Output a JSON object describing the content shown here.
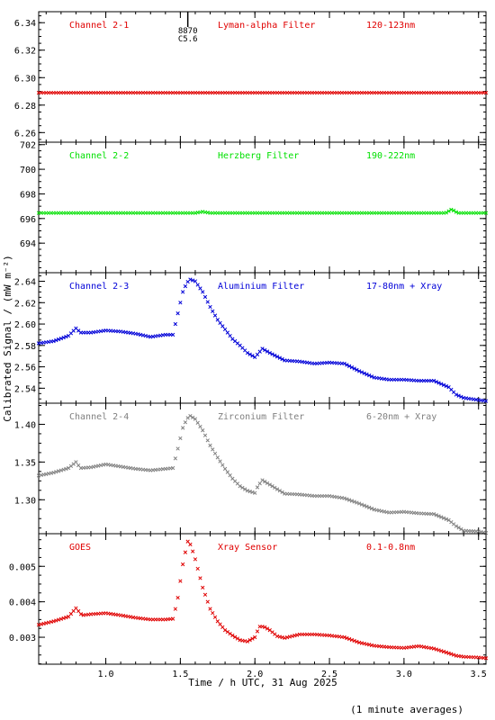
{
  "figure": {
    "xlabel": "Time / h UTC, 31 Aug 2025",
    "ylabel": "Calibrated Signal / (mW m⁻²)",
    "footnote": "(1 minute averages)",
    "colors": {
      "red": "#e00000",
      "green": "#00e000",
      "blue": "#0000d8",
      "gray": "#808080",
      "axis": "#000000"
    }
  },
  "chart_data": [
    {
      "type": "scatter",
      "panel": 1,
      "labels": [
        "Channel 2-1",
        "Lyman-alpha Filter",
        "120-123nm"
      ],
      "color": "#e00000",
      "xlim": [
        0.55,
        3.55
      ],
      "ylim": [
        6.253,
        6.348
      ],
      "yticks": [
        6.26,
        6.28,
        6.3,
        6.32,
        6.34
      ],
      "ytick_labels": [
        "6.26",
        "6.28",
        "6.30",
        "6.32",
        "6.34"
      ],
      "annotation": {
        "x": 1.55,
        "lines": [
          "8870",
          "C5.6"
        ]
      },
      "series": [
        {
          "x": [
            0.55,
            3.55
          ],
          "y": [
            6.289,
            6.289
          ]
        }
      ]
    },
    {
      "type": "scatter",
      "panel": 2,
      "labels": [
        "Channel 2-2",
        "Herzberg Filter",
        "190-222nm"
      ],
      "color": "#00e000",
      "xlim": [
        0.55,
        3.55
      ],
      "ylim": [
        691.6,
        702.2
      ],
      "yticks": [
        694,
        696,
        698,
        700,
        702
      ],
      "ytick_labels": [
        "694",
        "696",
        "698",
        "700",
        "702"
      ],
      "series": [
        {
          "x": [
            0.55,
            1.6,
            1.65,
            1.7,
            3.28,
            3.32,
            3.36,
            3.55
          ],
          "y": [
            696.45,
            696.45,
            696.55,
            696.45,
            696.45,
            696.75,
            696.45,
            696.45
          ]
        }
      ]
    },
    {
      "type": "scatter",
      "panel": 3,
      "labels": [
        "Channel 2-3",
        "Aluminium Filter",
        "17-80nm + Xray"
      ],
      "color": "#0000d8",
      "xlim": [
        0.55,
        3.55
      ],
      "ylim": [
        2.526,
        2.648
      ],
      "yticks": [
        2.54,
        2.56,
        2.58,
        2.6,
        2.62,
        2.64
      ],
      "ytick_labels": [
        "2.54",
        "2.56",
        "2.58",
        "2.60",
        "2.62",
        "2.64"
      ],
      "series": [
        {
          "x": [
            0.55,
            0.65,
            0.75,
            0.8,
            0.83,
            0.9,
            1.0,
            1.1,
            1.2,
            1.3,
            1.4,
            1.45,
            1.48,
            1.52,
            1.56,
            1.6,
            1.65,
            1.7,
            1.75,
            1.8,
            1.85,
            1.9,
            1.95,
            2.0,
            2.02,
            2.05,
            2.1,
            2.2,
            2.3,
            2.4,
            2.5,
            2.6,
            2.7,
            2.8,
            2.9,
            3.0,
            3.1,
            3.2,
            3.3,
            3.35,
            3.4,
            3.5,
            3.55
          ],
          "y": [
            2.582,
            2.584,
            2.589,
            2.596,
            2.592,
            2.592,
            2.594,
            2.593,
            2.591,
            2.588,
            2.59,
            2.59,
            2.608,
            2.632,
            2.642,
            2.64,
            2.63,
            2.616,
            2.604,
            2.595,
            2.586,
            2.58,
            2.573,
            2.569,
            2.572,
            2.577,
            2.573,
            2.566,
            2.565,
            2.563,
            2.564,
            2.563,
            2.556,
            2.55,
            2.548,
            2.548,
            2.547,
            2.547,
            2.541,
            2.534,
            2.531,
            2.529,
            2.528
          ]
        }
      ]
    },
    {
      "type": "scatter",
      "panel": 4,
      "labels": [
        "Channel 2-4",
        "Zirconium Filter",
        "6-20nm + Xray"
      ],
      "color": "#808080",
      "xlim": [
        0.55,
        3.55
      ],
      "ylim": [
        1.255,
        1.428
      ],
      "yticks": [
        1.3,
        1.35,
        1.4
      ],
      "ytick_labels": [
        "1.30",
        "1.35",
        "1.40"
      ],
      "series": [
        {
          "x": [
            0.55,
            0.65,
            0.75,
            0.8,
            0.83,
            0.9,
            1.0,
            1.1,
            1.2,
            1.3,
            1.4,
            1.45,
            1.48,
            1.52,
            1.56,
            1.6,
            1.65,
            1.7,
            1.75,
            1.8,
            1.85,
            1.9,
            1.95,
            2.0,
            2.02,
            2.05,
            2.1,
            2.2,
            2.3,
            2.4,
            2.5,
            2.6,
            2.7,
            2.8,
            2.9,
            3.0,
            3.1,
            3.2,
            3.3,
            3.35,
            3.4,
            3.5,
            3.55
          ],
          "y": [
            1.332,
            1.336,
            1.342,
            1.35,
            1.342,
            1.343,
            1.347,
            1.344,
            1.341,
            1.339,
            1.341,
            1.342,
            1.365,
            1.398,
            1.412,
            1.407,
            1.392,
            1.372,
            1.356,
            1.341,
            1.328,
            1.318,
            1.312,
            1.309,
            1.318,
            1.326,
            1.32,
            1.308,
            1.307,
            1.305,
            1.305,
            1.302,
            1.295,
            1.287,
            1.283,
            1.284,
            1.282,
            1.281,
            1.273,
            1.265,
            1.259,
            1.258,
            1.256
          ]
        }
      ]
    },
    {
      "type": "scatter",
      "panel": 5,
      "labels": [
        "GOES",
        "Xray Sensor",
        "0.1-0.8nm"
      ],
      "color": "#e00000",
      "xlim": [
        0.55,
        3.55
      ],
      "ylim": [
        0.00224,
        0.00592
      ],
      "yticks": [
        0.003,
        0.004,
        0.005
      ],
      "ytick_labels": [
        "0.003",
        "0.004",
        "0.005"
      ],
      "xticks": [
        1.0,
        1.5,
        2.0,
        2.5,
        3.0,
        3.5
      ],
      "xtick_labels": [
        "1.0",
        "1.5",
        "2.0",
        "2.5",
        "3.0",
        "3.5"
      ],
      "series": [
        {
          "x": [
            0.55,
            0.65,
            0.75,
            0.8,
            0.84,
            0.9,
            1.0,
            1.1,
            1.2,
            1.3,
            1.4,
            1.45,
            1.48,
            1.52,
            1.55,
            1.57,
            1.6,
            1.65,
            1.7,
            1.75,
            1.8,
            1.85,
            1.9,
            1.95,
            2.0,
            2.03,
            2.06,
            2.1,
            2.15,
            2.2,
            2.3,
            2.4,
            2.5,
            2.6,
            2.7,
            2.8,
            2.9,
            3.0,
            3.1,
            3.2,
            3.3,
            3.35,
            3.4,
            3.5,
            3.55
          ],
          "y": [
            0.00335,
            0.00345,
            0.00358,
            0.00382,
            0.00362,
            0.00365,
            0.00368,
            0.00362,
            0.00355,
            0.0035,
            0.0035,
            0.00352,
            0.00402,
            0.00515,
            0.0057,
            0.0056,
            0.0052,
            0.0044,
            0.0038,
            0.00345,
            0.0032,
            0.00305,
            0.00292,
            0.00288,
            0.003,
            0.0033,
            0.0033,
            0.0032,
            0.00303,
            0.00298,
            0.00308,
            0.00308,
            0.00305,
            0.003,
            0.00285,
            0.00276,
            0.00272,
            0.0027,
            0.00275,
            0.00268,
            0.00255,
            0.00248,
            0.00245,
            0.00243,
            0.00241
          ]
        }
      ]
    }
  ]
}
